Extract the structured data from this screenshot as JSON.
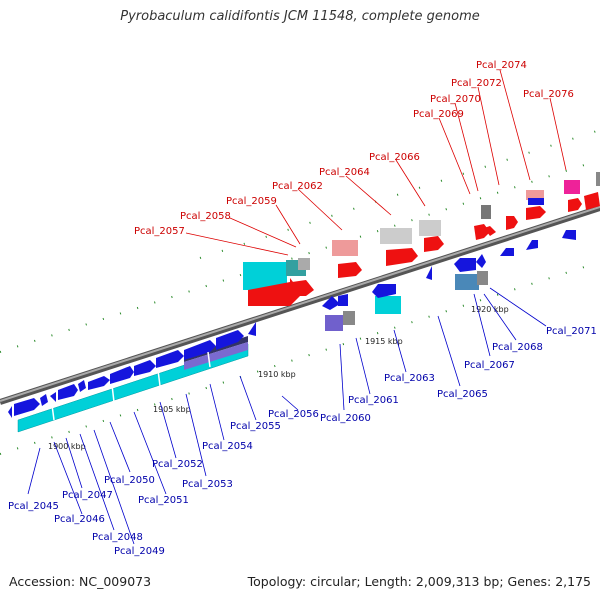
{
  "header": {
    "title": "Pyrobaculum calidifontis JCM 11548, complete genome"
  },
  "footer": {
    "accession": "Accession: NC_009073",
    "topology": "Topology: circular; Length: 2,009,313 bp; Genes: 2,175"
  },
  "colors": {
    "forward_gene": "#ee1111",
    "reverse_gene": "#1515dd",
    "backbone": "#888888",
    "forward_label": "#cc0000",
    "reverse_label": "#0000aa",
    "tick": "#338833"
  },
  "scale_labels": [
    "1900 kbp",
    "1905 kbp",
    "1910 kbp",
    "1915 kbp",
    "1920 kbp"
  ],
  "forward_genes": [
    "Pcal_2057",
    "Pcal_2058",
    "Pcal_2059",
    "Pcal_2062",
    "Pcal_2064",
    "Pcal_2066",
    "Pcal_2069",
    "Pcal_2070",
    "Pcal_2072",
    "Pcal_2074",
    "Pcal_2076"
  ],
  "reverse_genes": [
    "Pcal_2045",
    "Pcal_2046",
    "Pcal_2047",
    "Pcal_2048",
    "Pcal_2049",
    "Pcal_2050",
    "Pcal_2051",
    "Pcal_2052",
    "Pcal_2053",
    "Pcal_2054",
    "Pcal_2055",
    "Pcal_2056",
    "Pcal_2060",
    "Pcal_2061",
    "Pcal_2063",
    "Pcal_2065",
    "Pcal_2067",
    "Pcal_2068",
    "Pcal_2071"
  ]
}
